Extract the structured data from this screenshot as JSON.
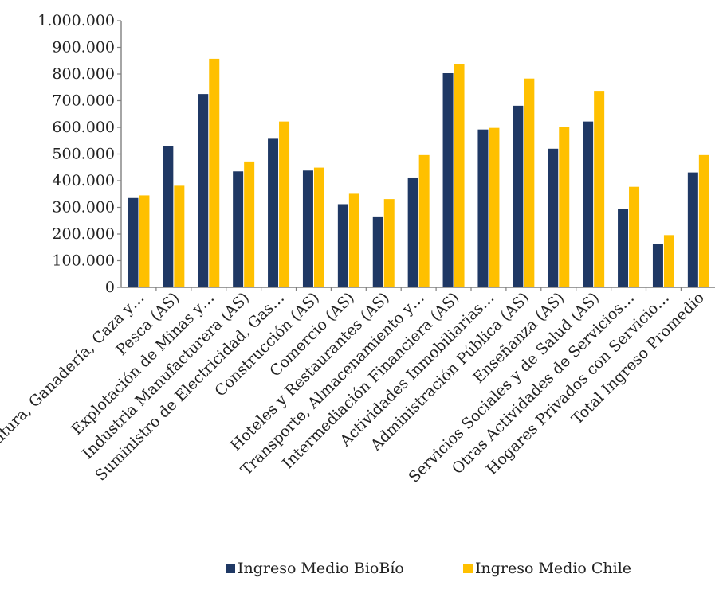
{
  "chart_data": {
    "type": "bar",
    "title": "",
    "xlabel": "",
    "ylabel": "",
    "ylim": [
      0,
      1000000
    ],
    "yticks": [
      "0",
      "100.000",
      "200.000",
      "300.000",
      "400.000",
      "500.000",
      "600.000",
      "700.000",
      "800.000",
      "900.000",
      "1.000.000"
    ],
    "ytick_values": [
      0,
      100000,
      200000,
      300000,
      400000,
      500000,
      600000,
      700000,
      800000,
      900000,
      1000000
    ],
    "grid": false,
    "legend_position": "bottom",
    "categories": [
      "Agricultura, Ganadería, Caza y…",
      "Pesca (AS)",
      "Explotación de Minas y…",
      "Industria Manufacturera (AS)",
      "Suministro de Electricidad, Gas…",
      "Construcción (AS)",
      "Comercio (AS)",
      "Hoteles y Restaurantes (AS)",
      "Transporte, Almacenamiento y…",
      "Intermediación Financiera (AS)",
      "Actividades Inmobiliarias…",
      "Administración Pública (AS)",
      "Enseñanza (AS)",
      "Servicios Sociales y de Salud (AS)",
      "Otras Actividades de Servicios…",
      "Hogares Privados con Servicio…",
      "Total Ingreso Promedio"
    ],
    "series": [
      {
        "name": "Ingreso Medio BioBío",
        "color": "#1f3864",
        "values": [
          335000,
          530000,
          725000,
          435000,
          557000,
          438000,
          312000,
          266000,
          412000,
          803000,
          592000,
          681000,
          520000,
          622000,
          294000,
          162000,
          431000
        ]
      },
      {
        "name": "Ingreso Medio Chile",
        "color": "#ffc000",
        "values": [
          345000,
          381000,
          857000,
          472000,
          622000,
          449000,
          351000,
          331000,
          496000,
          837000,
          598000,
          783000,
          603000,
          737000,
          377000,
          196000,
          496000
        ]
      }
    ]
  }
}
